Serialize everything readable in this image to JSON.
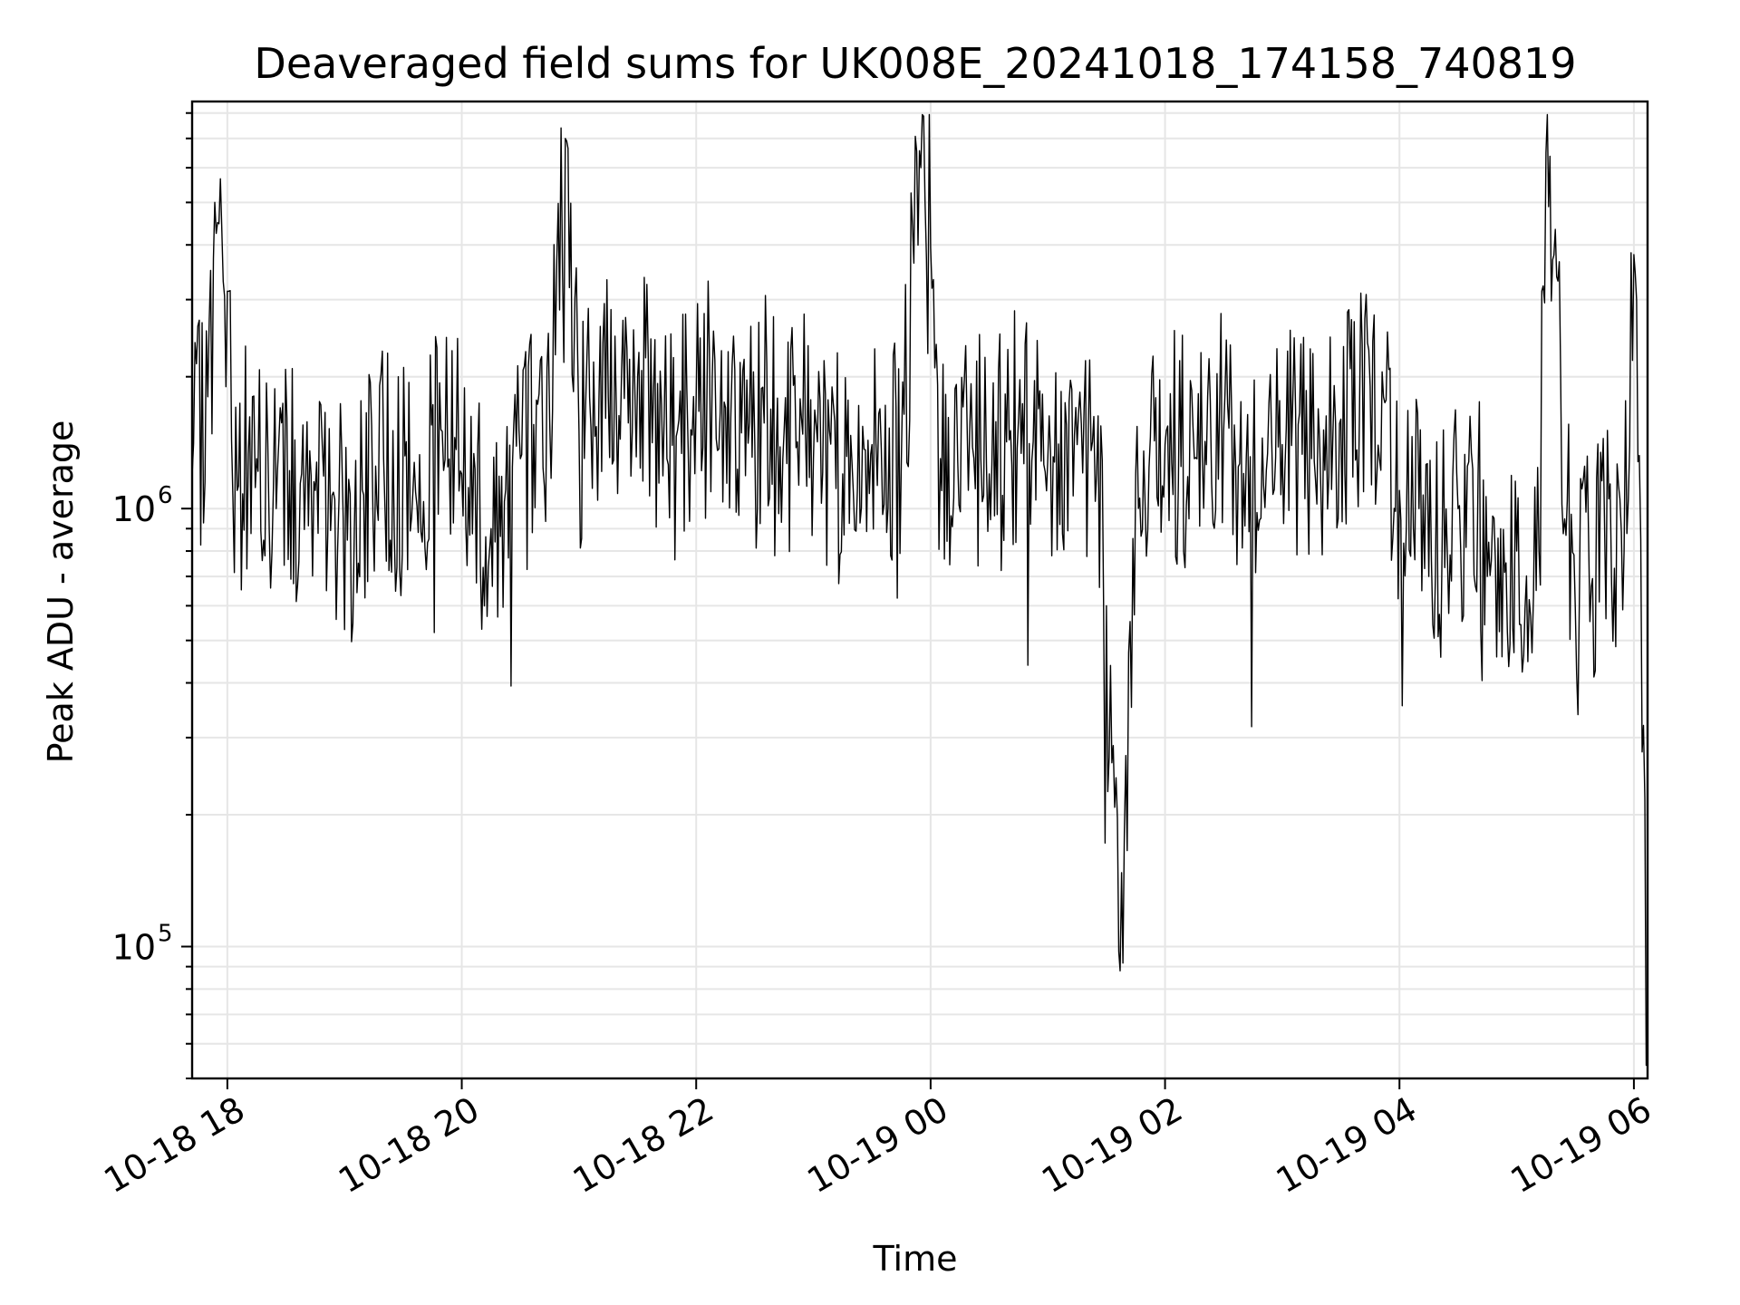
{
  "chart_data": {
    "type": "line",
    "title": "Deaveraged field sums for UK008E_20241018_174158_740819",
    "xlabel": "Time",
    "ylabel": "Peak ADU - average",
    "yscale": "log",
    "ylim": [
      50000,
      8500000
    ],
    "xlim": [
      "2024-10-18T17:41:58",
      "2024-10-19T06:07:00"
    ],
    "grid": true,
    "line_color": "#000000",
    "x_ticks": [
      {
        "t": "2024-10-18T18:00:00",
        "label": "10-18 18"
      },
      {
        "t": "2024-10-18T20:00:00",
        "label": "10-18 20"
      },
      {
        "t": "2024-10-18T22:00:00",
        "label": "10-18 22"
      },
      {
        "t": "2024-10-19T00:00:00",
        "label": "10-19 00"
      },
      {
        "t": "2024-10-19T02:00:00",
        "label": "10-19 02"
      },
      {
        "t": "2024-10-19T04:00:00",
        "label": "10-19 04"
      },
      {
        "t": "2024-10-19T06:00:00",
        "label": "10-19 06"
      }
    ],
    "y_ticks": [
      {
        "value": 100000,
        "base": "10",
        "exp": "5"
      },
      {
        "value": 1000000,
        "base": "10",
        "exp": "6"
      }
    ],
    "series": [
      {
        "x": [
          "2024-10-18T17:42",
          "2024-10-18T17:50",
          "2024-10-18T17:55",
          "2024-10-18T18:05",
          "2024-10-18T18:15",
          "2024-10-18T18:25",
          "2024-10-18T18:38",
          "2024-10-18T18:45",
          "2024-10-18T18:55",
          "2024-10-18T19:05",
          "2024-10-18T19:20",
          "2024-10-18T19:35",
          "2024-10-18T19:50",
          "2024-10-18T20:00",
          "2024-10-18T20:15",
          "2024-10-18T20:30",
          "2024-10-18T20:45",
          "2024-10-18T20:53",
          "2024-10-18T21:00",
          "2024-10-18T21:15",
          "2024-10-18T21:30",
          "2024-10-18T21:45",
          "2024-10-18T22:00",
          "2024-10-18T22:15",
          "2024-10-18T22:30",
          "2024-10-18T22:45",
          "2024-10-18T23:00",
          "2024-10-18T23:15",
          "2024-10-18T23:30",
          "2024-10-18T23:45",
          "2024-10-18T23:55",
          "2024-10-19T00:05",
          "2024-10-19T00:20",
          "2024-10-19T00:30",
          "2024-10-19T00:45",
          "2024-10-19T01:00",
          "2024-10-19T01:15",
          "2024-10-19T01:25",
          "2024-10-19T01:30",
          "2024-10-19T01:37",
          "2024-10-19T01:45",
          "2024-10-19T02:00",
          "2024-10-19T02:15",
          "2024-10-19T02:30",
          "2024-10-19T02:45",
          "2024-10-19T03:00",
          "2024-10-19T03:15",
          "2024-10-19T03:30",
          "2024-10-19T03:45",
          "2024-10-19T04:00",
          "2024-10-19T04:10",
          "2024-10-19T04:15",
          "2024-10-19T04:30",
          "2024-10-19T04:45",
          "2024-10-19T05:00",
          "2024-10-19T05:10",
          "2024-10-19T05:15",
          "2024-10-19T05:30",
          "2024-10-19T05:45",
          "2024-10-19T05:55",
          "2024-10-19T06:00",
          "2024-10-19T06:07"
        ],
        "y": [
          1200000,
          1800000,
          4500000,
          1100000,
          1300000,
          1000000,
          1200000,
          1100000,
          1050000,
          900000,
          1300000,
          1100000,
          1500000,
          1200000,
          900000,
          1300000,
          1600000,
          7000000,
          1500000,
          1800000,
          2000000,
          1300000,
          1800000,
          1700000,
          1400000,
          1500000,
          1300000,
          1200000,
          1400000,
          1300000,
          6000000,
          1300000,
          1500000,
          1200000,
          1600000,
          1300000,
          1400000,
          1200000,
          600000,
          88000,
          1200000,
          1400000,
          1300000,
          1500000,
          1200000,
          1400000,
          1300000,
          1600000,
          1900000,
          1100000,
          1000000,
          700000,
          1000000,
          700000,
          800000,
          650000,
          6500000,
          600000,
          900000,
          800000,
          3800000,
          60000
        ]
      }
    ]
  }
}
